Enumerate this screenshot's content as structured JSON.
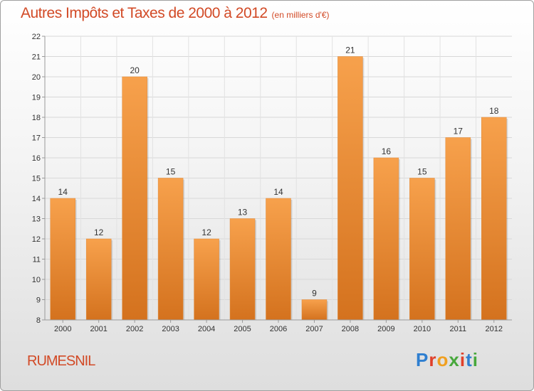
{
  "chart_data": {
    "type": "bar",
    "title": "Autres Impôts et Taxes de 2000 à 2012",
    "unit_note": "(en milliers d'€)",
    "categories": [
      "2000",
      "2001",
      "2002",
      "2003",
      "2004",
      "2005",
      "2006",
      "2007",
      "2008",
      "2009",
      "2010",
      "2011",
      "2012"
    ],
    "values": [
      14,
      12,
      20,
      15,
      12,
      13,
      14,
      9,
      21,
      16,
      15,
      17,
      18
    ],
    "ylim": [
      8,
      22
    ],
    "yticks": [
      8,
      9,
      10,
      11,
      12,
      13,
      14,
      15,
      16,
      17,
      18,
      19,
      20,
      21,
      22
    ],
    "grid": true,
    "bar_color": "#f08c30",
    "title_color": "#d24a26"
  },
  "footer": {
    "place": "RUMESNIL",
    "brand": "Proxiti"
  }
}
